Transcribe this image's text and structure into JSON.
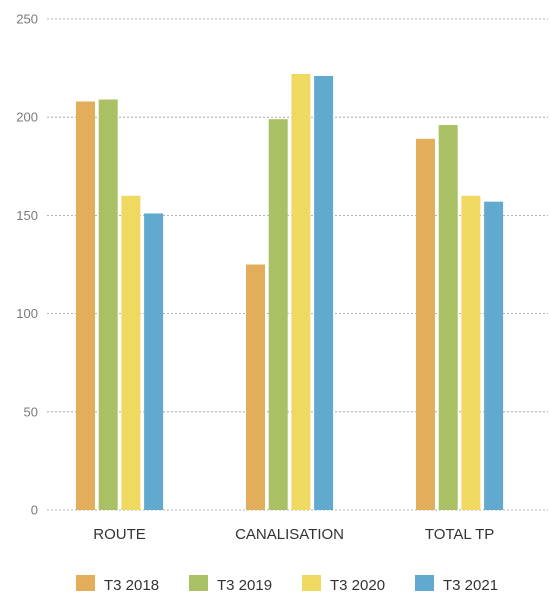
{
  "chart_data": {
    "type": "bar",
    "title": "",
    "xlabel": "",
    "ylabel": "",
    "categories": [
      "ROUTE",
      "CANALISATION",
      "TOTAL TP"
    ],
    "series": [
      {
        "name": "T3 2018",
        "color": "#E3AE5C",
        "values": [
          208,
          125,
          189
        ]
      },
      {
        "name": "T3 2019",
        "color": "#A9C065",
        "values": [
          209,
          199,
          196
        ]
      },
      {
        "name": "T3 2020",
        "color": "#EFD960",
        "values": [
          160,
          222,
          160
        ]
      },
      {
        "name": "T3 2021",
        "color": "#62A9CF",
        "values": [
          151,
          221,
          157
        ]
      }
    ],
    "ylim": [
      0,
      250
    ],
    "yticks": [
      "0",
      "50",
      "100",
      "150",
      "200",
      "250"
    ],
    "grid": true,
    "legend_position": "bottom"
  }
}
